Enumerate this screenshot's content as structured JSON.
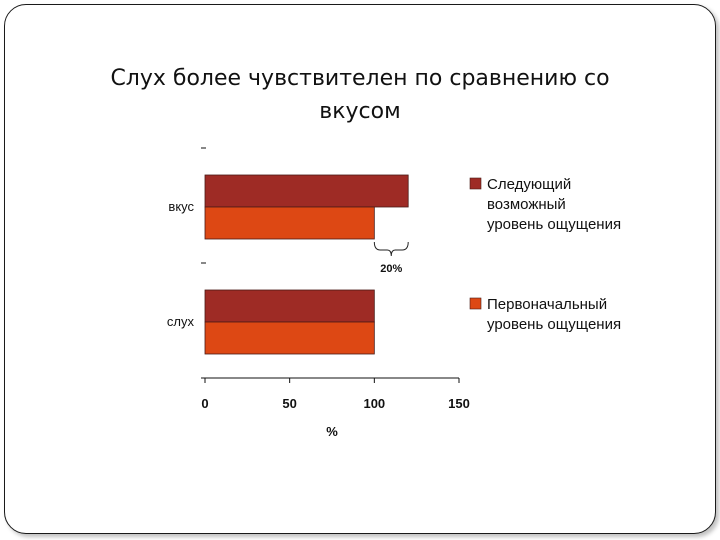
{
  "slide": {
    "title": "Слух более чувствителен по сравнению со вкусом"
  },
  "chart_data": {
    "type": "bar",
    "orientation": "horizontal",
    "categories": [
      "вкус",
      "слух"
    ],
    "series": [
      {
        "name": "Следующий возможный уровень ощущения",
        "values": [
          120,
          100
        ],
        "color": "#9e2b25"
      },
      {
        "name": "Первоначальный уровень ощущения",
        "values": [
          100,
          100
        ],
        "color": "#dd4814"
      }
    ],
    "xlabel": "%",
    "xlim": [
      0,
      150
    ],
    "xticks": [
      0,
      50,
      100,
      150
    ],
    "grid": false,
    "legend": "right",
    "annotation": {
      "text": "20%",
      "category": "вкус",
      "from": 100,
      "to": 120
    }
  }
}
